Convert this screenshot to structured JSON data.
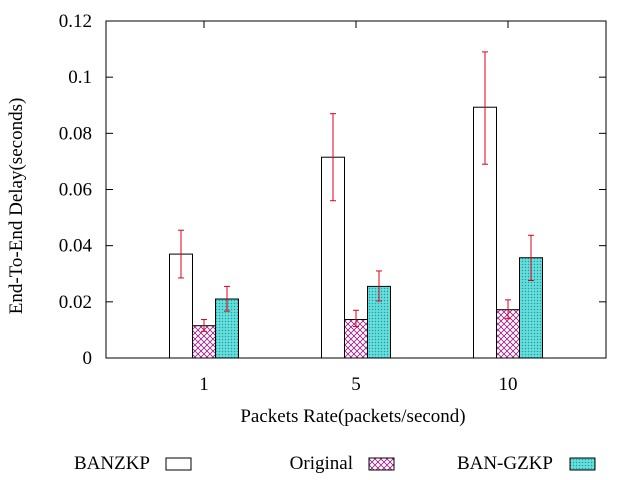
{
  "chart_data": {
    "type": "bar",
    "title": "",
    "xlabel": "Packets Rate(packets/second)",
    "ylabel": "End-To-End Delay(seconds)",
    "ylim": [
      0,
      0.12
    ],
    "yticks": [
      {
        "value": 0,
        "label": "0"
      },
      {
        "value": 0.02,
        "label": "0.02"
      },
      {
        "value": 0.04,
        "label": "0.04"
      },
      {
        "value": 0.06,
        "label": "0.06"
      },
      {
        "value": 0.08,
        "label": "0.08"
      },
      {
        "value": 0.1,
        "label": "0.1"
      },
      {
        "value": 0.12,
        "label": "0.12"
      }
    ],
    "categories": [
      "1",
      "5",
      "10"
    ],
    "series": [
      {
        "name": "BANZKP",
        "pattern": "white",
        "values": [
          0.037,
          0.0715,
          0.0893
        ],
        "err_low": [
          0.0285,
          0.056,
          0.069
        ],
        "err_high": [
          0.0455,
          0.087,
          0.109
        ]
      },
      {
        "name": "Original",
        "pattern": "crosshatch-magenta",
        "values": [
          0.0115,
          0.0137,
          0.0172
        ],
        "err_low": [
          0.0095,
          0.0112,
          0.014
        ],
        "err_high": [
          0.0137,
          0.017,
          0.0207
        ]
      },
      {
        "name": "BAN-GZKP",
        "pattern": "dots-cyan",
        "values": [
          0.021,
          0.0255,
          0.0357
        ],
        "err_low": [
          0.0167,
          0.0203,
          0.0276
        ],
        "err_high": [
          0.0255,
          0.031,
          0.0437
        ]
      }
    ],
    "legend_position": "bottom",
    "colors": {
      "errorbar": "#e0001c",
      "original_hatch": "#a0208c",
      "gzkp_fill": "#57d6d6",
      "gzkp_dots": "#2c9a9a",
      "bar_outline": "#000000"
    }
  }
}
